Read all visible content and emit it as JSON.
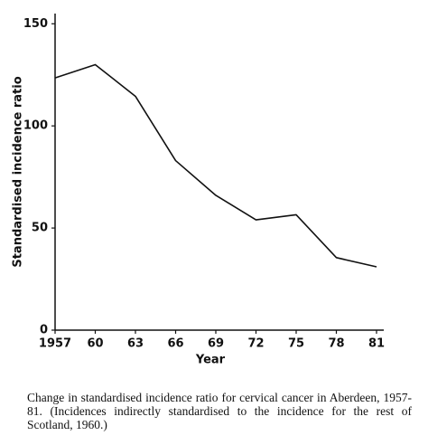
{
  "chart_data": {
    "type": "line",
    "y_label": "Standardised incidence ratio",
    "x_label": "Year",
    "caption": "Change in standardised incidence ratio for cervical cancer in Aberdeen, 1957-81. (Incidences indirectly standardised to the incidence for the rest of Scotland, 1960.)",
    "x": [
      1957,
      1960,
      1963,
      1966,
      1969,
      1972,
      1975,
      1978,
      1981
    ],
    "series": [
      {
        "color": "#111111",
        "values": [
          123.5,
          130,
          114.5,
          83,
          66,
          54,
          56.5,
          35.5,
          31
        ]
      }
    ],
    "xlim": [
      1957,
      1981
    ],
    "xticks": [
      1957,
      {
        "value": 1960,
        "label": "60"
      },
      {
        "value": 1963,
        "label": "63"
      },
      {
        "value": 1966,
        "label": "66"
      },
      {
        "value": 1969,
        "label": "69"
      },
      {
        "value": 1972,
        "label": "72"
      },
      {
        "value": 1975,
        "label": "75"
      },
      {
        "value": 1978,
        "label": "78"
      },
      {
        "value": 1981,
        "label": "81"
      }
    ],
    "ylim": [
      0,
      155
    ],
    "yticks": [
      0,
      50,
      100,
      150
    ],
    "grid": false
  }
}
